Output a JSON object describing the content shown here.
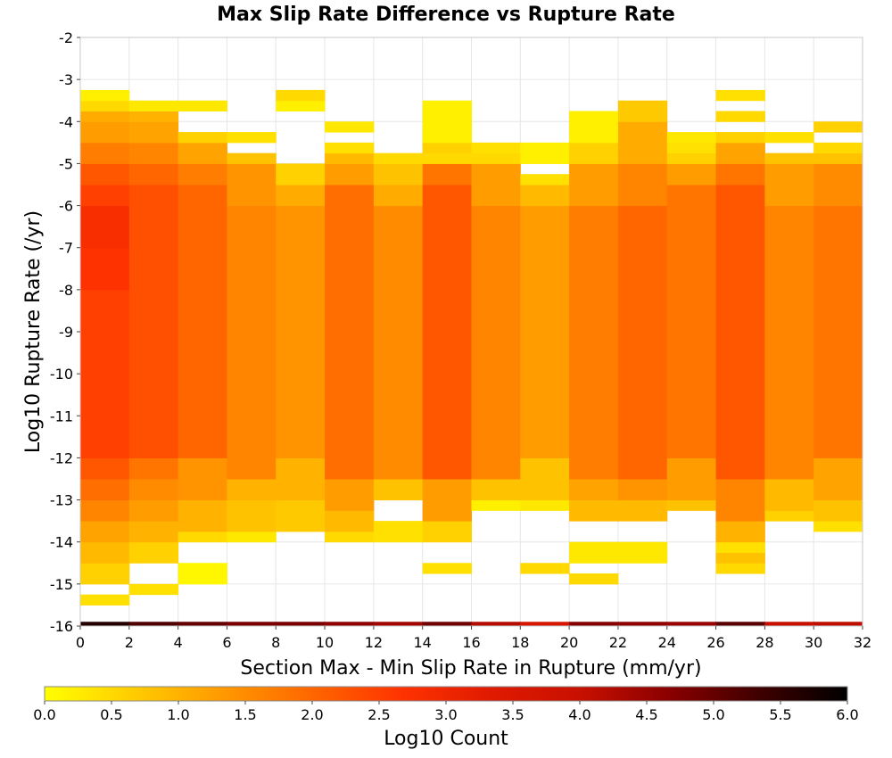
{
  "chart_data": {
    "type": "heatmap",
    "title": "Max Slip Rate Difference vs Rupture Rate",
    "xlabel": "Section Max - Min Slip Rate in Rupture (mm/yr)",
    "ylabel": "Log10 Rupture Rate (/yr)",
    "xlim": [
      0,
      32
    ],
    "ylim": [
      -16,
      -2
    ],
    "x_ticks": [
      "0",
      "2",
      "4",
      "6",
      "8",
      "10",
      "12",
      "14",
      "16",
      "18",
      "20",
      "22",
      "24",
      "26",
      "28",
      "30",
      "32"
    ],
    "y_ticks": [
      "-2",
      "-3",
      "-4",
      "-5",
      "-6",
      "-7",
      "-8",
      "-9",
      "-10",
      "-11",
      "-12",
      "-13",
      "-14",
      "-15",
      "-16"
    ],
    "x_bin_width": 2,
    "y_bin_width": 0.25,
    "grid": true,
    "colorbar": {
      "label": "Log10 Count",
      "min": 0.0,
      "max": 6.0,
      "ticks": [
        "0.0",
        "0.5",
        "1.0",
        "1.5",
        "2.0",
        "2.5",
        "3.0",
        "3.5",
        "4.0",
        "4.5",
        "5.0",
        "5.5",
        "6.0"
      ],
      "stops": [
        "#ffff00",
        "#ffcc00",
        "#ff9900",
        "#ff6600",
        "#ff3300",
        "#e01a00",
        "#c81000",
        "#8a0000",
        "#400000",
        "#000000"
      ]
    },
    "columns": [
      {
        "x0": 0,
        "values": [
          [
            -15.5,
            -15.25,
            0.4
          ],
          [
            -15,
            -14.5,
            0.6
          ],
          [
            -14.5,
            -14,
            0.9
          ],
          [
            -14,
            -13.5,
            1.2
          ],
          [
            -13.5,
            -13,
            1.6
          ],
          [
            -13,
            -12.5,
            1.9
          ],
          [
            -12.5,
            -12,
            2.2
          ],
          [
            -12,
            -8,
            2.5
          ],
          [
            -8,
            -7,
            2.7
          ],
          [
            -7,
            -6,
            2.8
          ],
          [
            -6,
            -5.5,
            2.5
          ],
          [
            -5.5,
            -5,
            2.2
          ],
          [
            -5,
            -4.5,
            1.7
          ],
          [
            -4.5,
            -4,
            1.3
          ],
          [
            -4,
            -3.75,
            1.1
          ],
          [
            -3.75,
            -3.5,
            0.5
          ],
          [
            -3.5,
            -3.25,
            0.2
          ]
        ]
      },
      {
        "x0": 2,
        "values": [
          [
            -15.25,
            -15,
            0.4
          ],
          [
            -14.5,
            -14,
            0.6
          ],
          [
            -14,
            -13.5,
            1.0
          ],
          [
            -13.5,
            -13,
            1.3
          ],
          [
            -13,
            -12.5,
            1.5
          ],
          [
            -12.5,
            -12,
            1.8
          ],
          [
            -12,
            -5.5,
            2.3
          ],
          [
            -5.5,
            -5,
            2.0
          ],
          [
            -5,
            -4.5,
            1.6
          ],
          [
            -4.5,
            -4,
            1.2
          ],
          [
            -4,
            -3.75,
            1.0
          ],
          [
            -3.75,
            -3.5,
            0.3
          ]
        ]
      },
      {
        "x0": 4,
        "values": [
          [
            -15,
            -14.5,
            0.1
          ],
          [
            -14,
            -13.75,
            0.5
          ],
          [
            -13.75,
            -13,
            1.0
          ],
          [
            -13,
            -12,
            1.4
          ],
          [
            -12,
            -5.5,
            2.0
          ],
          [
            -5.5,
            -5,
            1.7
          ],
          [
            -5,
            -4.5,
            1.2
          ],
          [
            -4.5,
            -4.25,
            0.6
          ],
          [
            -3.75,
            -3.5,
            0.3
          ]
        ]
      },
      {
        "x0": 6,
        "values": [
          [
            -14,
            -13.75,
            0.3
          ],
          [
            -13.75,
            -13,
            0.8
          ],
          [
            -13,
            -12.5,
            1.0
          ],
          [
            -12.5,
            -6,
            1.6
          ],
          [
            -6,
            -5,
            1.4
          ],
          [
            -5,
            -4.75,
            0.8
          ],
          [
            -4.5,
            -4.25,
            0.4
          ]
        ]
      },
      {
        "x0": 8,
        "values": [
          [
            -13.75,
            -13,
            0.7
          ],
          [
            -13,
            -12,
            1.0
          ],
          [
            -12,
            -6,
            1.4
          ],
          [
            -6,
            -5.5,
            1.1
          ],
          [
            -5.5,
            -5,
            0.6
          ],
          [
            -3.75,
            -3.5,
            0.2
          ],
          [
            -3.5,
            -3.25,
            0.5
          ]
        ]
      },
      {
        "x0": 10,
        "values": [
          [
            -14,
            -13.75,
            0.5
          ],
          [
            -13.75,
            -13.25,
            0.9
          ],
          [
            -13.25,
            -12.5,
            1.3
          ],
          [
            -12.5,
            -5.5,
            1.9
          ],
          [
            -5.5,
            -5,
            1.3
          ],
          [
            -5,
            -4.75,
            0.9
          ],
          [
            -4.75,
            -4.5,
            0.4
          ],
          [
            -4.25,
            -4,
            0.3
          ]
        ]
      },
      {
        "x0": 12,
        "values": [
          [
            -14,
            -13.5,
            0.4
          ],
          [
            -13,
            -12.5,
            0.8
          ],
          [
            -12.5,
            -6,
            1.5
          ],
          [
            -6,
            -5.5,
            1.1
          ],
          [
            -5.5,
            -5,
            0.8
          ],
          [
            -5,
            -4.75,
            0.5
          ]
        ]
      },
      {
        "x0": 14,
        "values": [
          [
            -14.75,
            -14.5,
            0.4
          ],
          [
            -14,
            -13.5,
            0.6
          ],
          [
            -13.5,
            -12.5,
            1.3
          ],
          [
            -12.5,
            -5.5,
            2.2
          ],
          [
            -5.5,
            -5,
            1.8
          ],
          [
            -5,
            -4.75,
            0.5
          ],
          [
            -4.75,
            -4.5,
            0.6
          ],
          [
            -4.5,
            -3.5,
            0.2
          ]
        ]
      },
      {
        "x0": 16,
        "values": [
          [
            -13.25,
            -13,
            0.2
          ],
          [
            -13,
            -12.5,
            0.8
          ],
          [
            -12.5,
            -6,
            1.6
          ],
          [
            -6,
            -5,
            1.3
          ],
          [
            -5,
            -4.75,
            0.5
          ],
          [
            -4.75,
            -4.5,
            0.4
          ]
        ]
      },
      {
        "x0": 18,
        "values": [
          [
            -14.75,
            -14.5,
            0.5
          ],
          [
            -13.25,
            -13,
            0.3
          ],
          [
            -13,
            -12,
            0.8
          ],
          [
            -12,
            -6,
            1.3
          ],
          [
            -6,
            -5.5,
            0.9
          ],
          [
            -5.5,
            -5.25,
            0.4
          ],
          [
            -5,
            -4.5,
            0.2
          ]
        ]
      },
      {
        "x0": 20,
        "values": [
          [
            -15,
            -14.75,
            0.5
          ],
          [
            -14.5,
            -14,
            0.3
          ],
          [
            -13.5,
            -13,
            0.9
          ],
          [
            -13,
            -12.5,
            1.2
          ],
          [
            -12.5,
            -6,
            1.7
          ],
          [
            -6,
            -5,
            1.3
          ],
          [
            -5,
            -4.5,
            0.6
          ],
          [
            -4.5,
            -3.75,
            0.2
          ]
        ]
      },
      {
        "x0": 22,
        "values": [
          [
            -14.5,
            -14,
            0.3
          ],
          [
            -13.5,
            -13,
            0.9
          ],
          [
            -13,
            -12.5,
            1.4
          ],
          [
            -12.5,
            -6,
            2.0
          ],
          [
            -6,
            -5,
            1.6
          ],
          [
            -5,
            -4,
            1.1
          ],
          [
            -4,
            -3.5,
            0.7
          ]
        ]
      },
      {
        "x0": 24,
        "values": [
          [
            -13.25,
            -13,
            0.8
          ],
          [
            -13,
            -12,
            1.3
          ],
          [
            -12,
            -5.5,
            1.8
          ],
          [
            -5.5,
            -5,
            1.3
          ],
          [
            -5,
            -4.75,
            0.6
          ],
          [
            -4.75,
            -4.5,
            0.4
          ],
          [
            -4.5,
            -4.25,
            0.3
          ]
        ]
      },
      {
        "x0": 26,
        "values": [
          [
            -14.75,
            -14.5,
            0.5
          ],
          [
            -14.5,
            -14.25,
            0.8
          ],
          [
            -14.25,
            -14,
            0.4
          ],
          [
            -14,
            -13.5,
            1.0
          ],
          [
            -13.5,
            -12.5,
            1.6
          ],
          [
            -12.5,
            -5.5,
            2.2
          ],
          [
            -5.5,
            -5,
            1.8
          ],
          [
            -5,
            -4.5,
            1.2
          ],
          [
            -4.5,
            -4.25,
            0.6
          ],
          [
            -4,
            -3.75,
            0.5
          ],
          [
            -3.5,
            -3.25,
            0.4
          ]
        ]
      },
      {
        "x0": 28,
        "values": [
          [
            -13.5,
            -13.25,
            0.6
          ],
          [
            -13.25,
            -12.5,
            0.9
          ],
          [
            -12.5,
            -6,
            1.6
          ],
          [
            -6,
            -5,
            1.3
          ],
          [
            -5,
            -4.75,
            0.8
          ],
          [
            -4.5,
            -4.25,
            0.4
          ]
        ]
      },
      {
        "x0": 30,
        "values": [
          [
            -13.75,
            -13.5,
            0.4
          ],
          [
            -13.5,
            -13,
            0.8
          ],
          [
            -13,
            -12,
            1.2
          ],
          [
            -12,
            -6,
            1.8
          ],
          [
            -6,
            -5,
            1.5
          ],
          [
            -5,
            -4.75,
            0.8
          ],
          [
            -4.75,
            -4.5,
            0.5
          ],
          [
            -4.25,
            -4,
            0.6
          ]
        ]
      }
    ],
    "bottom_row": {
      "y0": -16,
      "y1": -15.9,
      "values": [
        5.6,
        5.2,
        5.0,
        4.8,
        4.8,
        4.6,
        4.4,
        4.9,
        4.2,
        3.6,
        4.7,
        4.6,
        4.5,
        5.1,
        4.0,
        4.1
      ]
    }
  }
}
